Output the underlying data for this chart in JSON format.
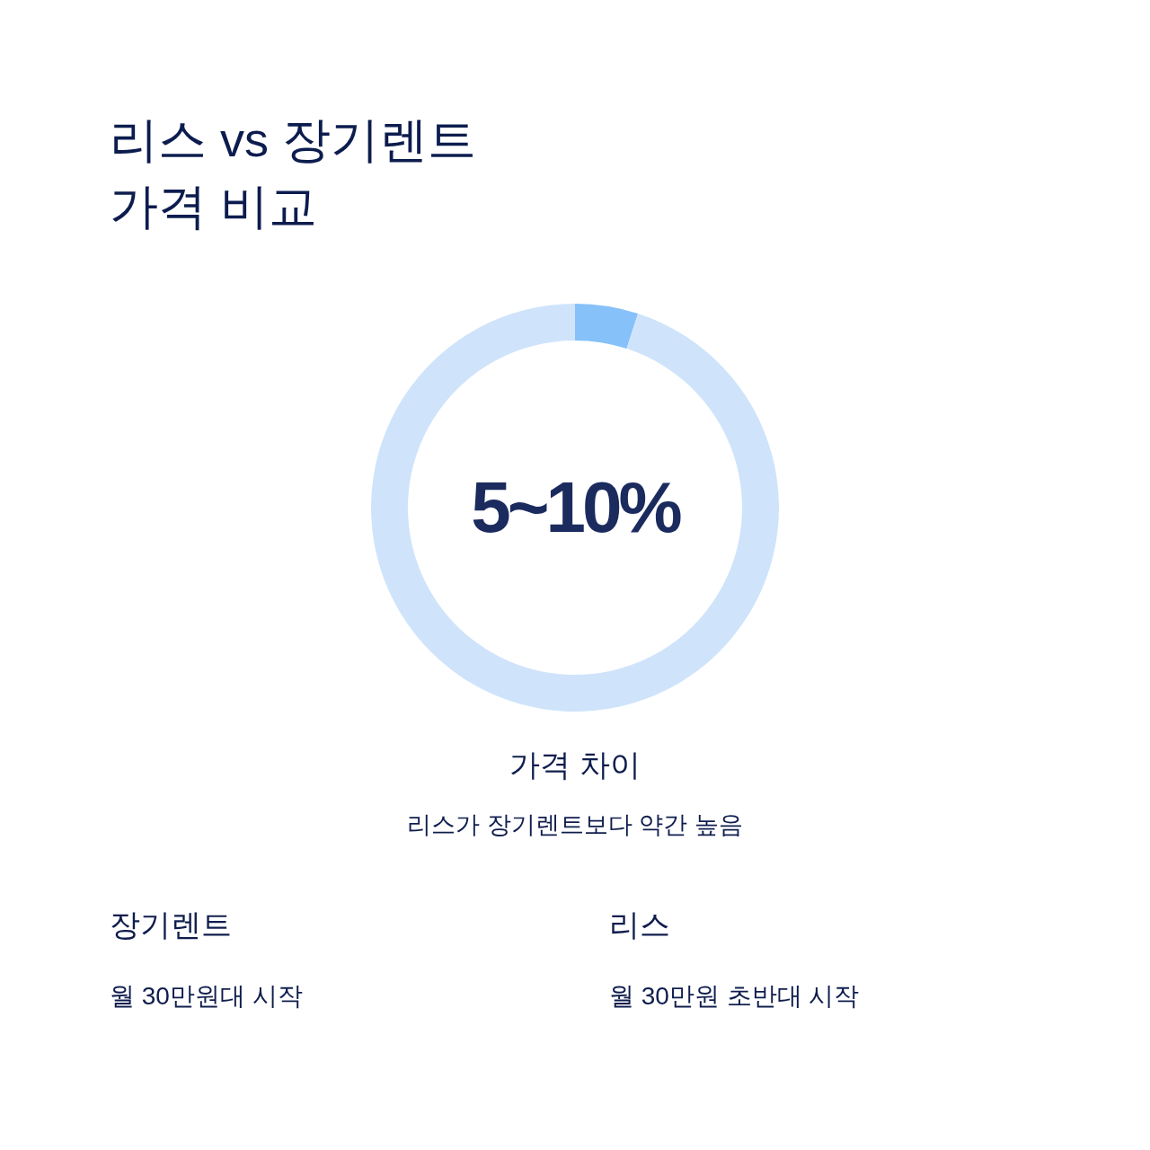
{
  "chart_data": {
    "type": "donut",
    "title": "리스 vs 장기렌트 가격 비교",
    "categories": [
      null,
      null
    ],
    "values": [
      5,
      95
    ],
    "colors": [
      "#86c1f9",
      "#cfe4fb"
    ],
    "annotations": [
      "5~10%",
      "가격 차이",
      "리스가 장기렌트보다 약간 높음",
      "장기렌트",
      "월 30만원대 시작",
      "리스",
      "월 30만원 초반대 시작"
    ]
  }
}
